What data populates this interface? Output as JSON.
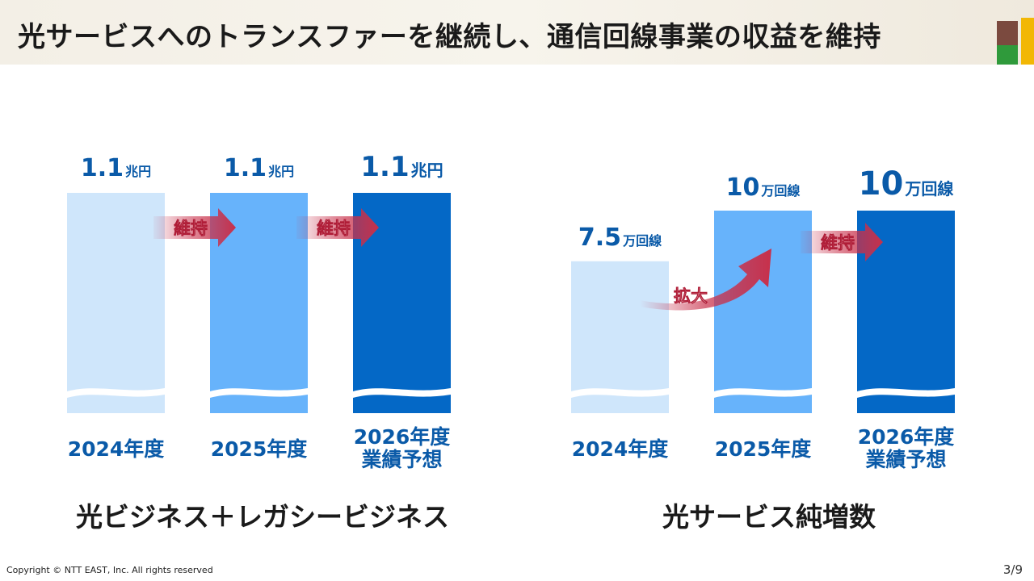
{
  "header": {
    "title": "光サービスへのトランスファーを継続し、通信回線事業の収益を維持"
  },
  "colors": {
    "accent_brown": "#7b4a3f",
    "accent_green": "#2f9a3b",
    "accent_yellow": "#f2b705",
    "accent_blue": "#1565c0",
    "bar_2024": "#cfe6fb",
    "bar_2025": "#67b3fb",
    "bar_2026": "#0468c6",
    "label_blue": "#0a5aa8",
    "arrow_red": "#c8304a"
  },
  "chart_data": [
    {
      "type": "bar",
      "title": "光ビジネス＋レガシービジネス",
      "categories": [
        "2024年度",
        "2025年度",
        "2026年度\n業績予想"
      ],
      "values": [
        1.1,
        1.1,
        1.1
      ],
      "value_labels": [
        {
          "number": "1.1",
          "unit": "兆円"
        },
        {
          "number": "1.1",
          "unit": "兆円"
        },
        {
          "number": "1.1",
          "unit": "兆円"
        }
      ],
      "annotations": [
        {
          "text": "維持",
          "from": 0,
          "to": 1
        },
        {
          "text": "維持",
          "from": 1,
          "to": 2
        }
      ],
      "ylim": [
        0,
        1.1
      ]
    },
    {
      "type": "bar",
      "title": "光サービス純増数",
      "categories": [
        "2024年度",
        "2025年度",
        "2026年度\n業績予想"
      ],
      "values": [
        7.5,
        10,
        10
      ],
      "value_labels": [
        {
          "number": "7.5",
          "unit": "万回線"
        },
        {
          "number": "10",
          "unit": "万回線"
        },
        {
          "number": "10",
          "unit": "万回線"
        }
      ],
      "annotations": [
        {
          "text": "拡大",
          "from": 0,
          "to": 1
        },
        {
          "text": "維持",
          "from": 1,
          "to": 2
        }
      ],
      "ylim": [
        0,
        10
      ]
    }
  ],
  "footer": {
    "copyright": "Copyright © NTT EAST, Inc. All rights reserved",
    "page": "3/9"
  }
}
